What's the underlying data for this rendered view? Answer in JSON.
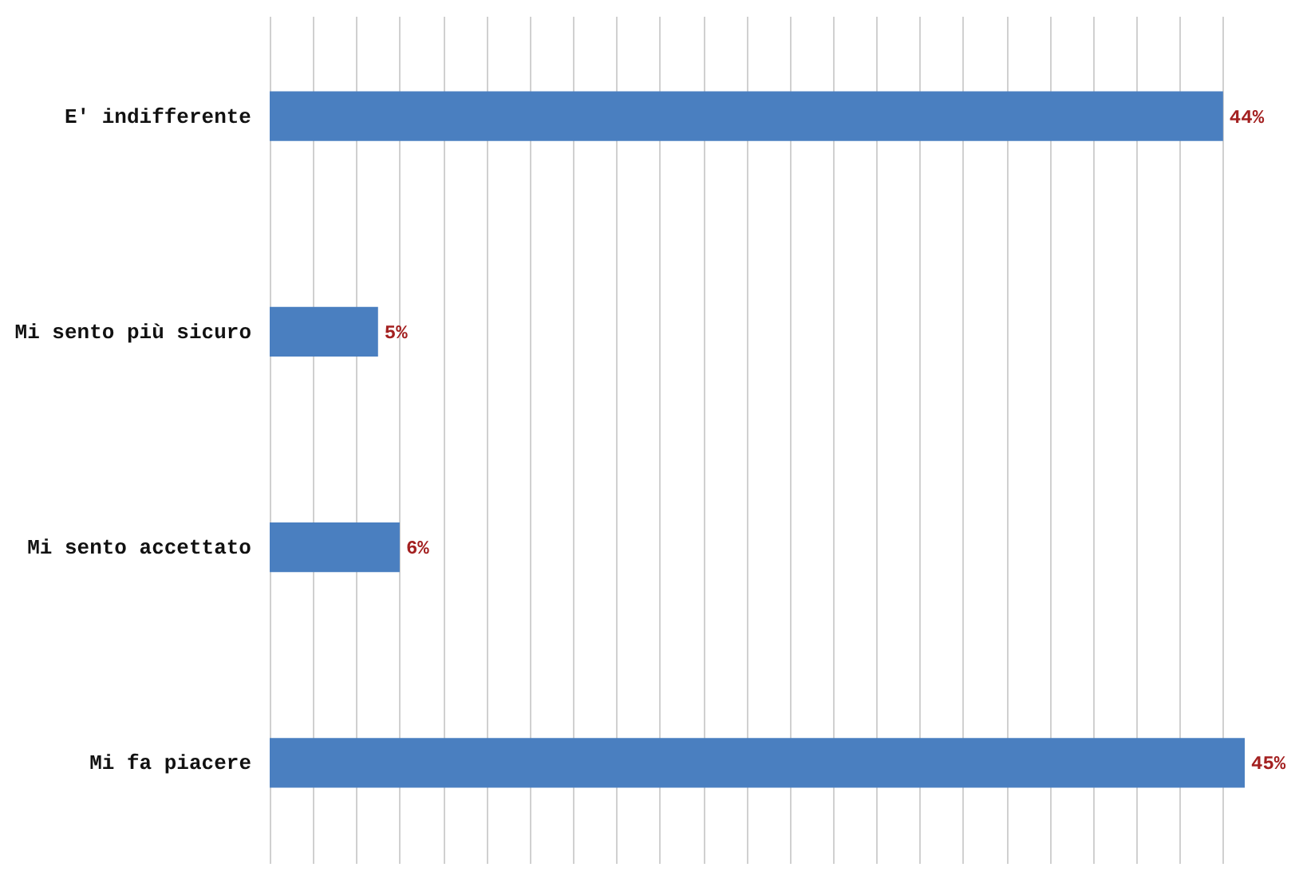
{
  "chart_data": {
    "type": "bar",
    "orientation": "horizontal",
    "categories": [
      "E' indifferente",
      "Mi sento più sicuro",
      "Mi sento accettato",
      "Mi fa piacere"
    ],
    "values": [
      44,
      5,
      6,
      45
    ],
    "color": "#4a7fc0",
    "value_labels": [
      "44%",
      "5%",
      "6%",
      "45%"
    ],
    "grid": "x",
    "tick_labels": "y"
  }
}
